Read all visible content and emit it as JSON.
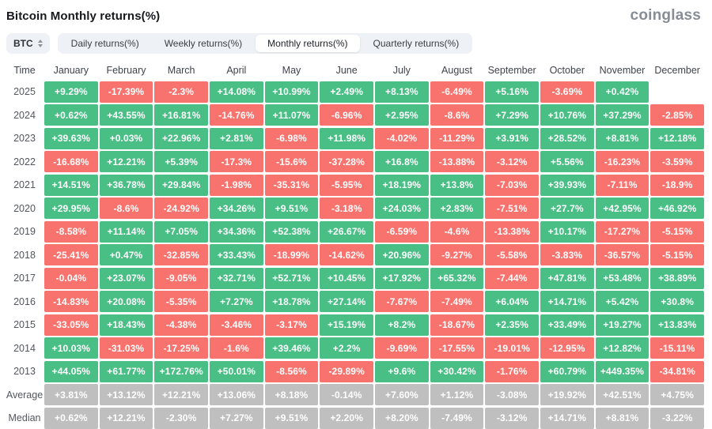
{
  "header": {
    "title": "Bitcoin Monthly returns(%)",
    "logo": "coinglass"
  },
  "controls": {
    "symbol": "BTC",
    "symbol_selector_icon": "up-down-chevron-icon",
    "tabs": [
      {
        "label": "Daily returns(%)",
        "active": false
      },
      {
        "label": "Weekly returns(%)",
        "active": false
      },
      {
        "label": "Monthly returns(%)",
        "active": true
      },
      {
        "label": "Quarterly returns(%)",
        "active": false
      }
    ]
  },
  "colors": {
    "positive": "#49BE85",
    "negative": "#F8736E",
    "neutral": "#BFBFBF"
  },
  "table": {
    "columns": [
      "Time",
      "January",
      "February",
      "March",
      "April",
      "May",
      "June",
      "July",
      "August",
      "September",
      "October",
      "November",
      "December"
    ],
    "rows": [
      {
        "label": "2025",
        "neutral": false,
        "values": [
          "+9.29%",
          "-17.39%",
          "-2.3%",
          "+14.08%",
          "+10.99%",
          "+2.49%",
          "+8.13%",
          "-6.49%",
          "+5.16%",
          "-3.69%",
          "+0.42%",
          ""
        ]
      },
      {
        "label": "2024",
        "neutral": false,
        "values": [
          "+0.62%",
          "+43.55%",
          "+16.81%",
          "-14.76%",
          "+11.07%",
          "-6.96%",
          "+2.95%",
          "-8.6%",
          "+7.29%",
          "+10.76%",
          "+37.29%",
          "-2.85%"
        ]
      },
      {
        "label": "2023",
        "neutral": false,
        "values": [
          "+39.63%",
          "+0.03%",
          "+22.96%",
          "+2.81%",
          "-6.98%",
          "+11.98%",
          "-4.02%",
          "-11.29%",
          "+3.91%",
          "+28.52%",
          "+8.81%",
          "+12.18%"
        ]
      },
      {
        "label": "2022",
        "neutral": false,
        "values": [
          "-16.68%",
          "+12.21%",
          "+5.39%",
          "-17.3%",
          "-15.6%",
          "-37.28%",
          "+16.8%",
          "-13.88%",
          "-3.12%",
          "+5.56%",
          "-16.23%",
          "-3.59%"
        ]
      },
      {
        "label": "2021",
        "neutral": false,
        "values": [
          "+14.51%",
          "+36.78%",
          "+29.84%",
          "-1.98%",
          "-35.31%",
          "-5.95%",
          "+18.19%",
          "+13.8%",
          "-7.03%",
          "+39.93%",
          "-7.11%",
          "-18.9%"
        ]
      },
      {
        "label": "2020",
        "neutral": false,
        "values": [
          "+29.95%",
          "-8.6%",
          "-24.92%",
          "+34.26%",
          "+9.51%",
          "-3.18%",
          "+24.03%",
          "+2.83%",
          "-7.51%",
          "+27.7%",
          "+42.95%",
          "+46.92%"
        ]
      },
      {
        "label": "2019",
        "neutral": false,
        "values": [
          "-8.58%",
          "+11.14%",
          "+7.05%",
          "+34.36%",
          "+52.38%",
          "+26.67%",
          "-6.59%",
          "-4.6%",
          "-13.38%",
          "+10.17%",
          "-17.27%",
          "-5.15%"
        ]
      },
      {
        "label": "2018",
        "neutral": false,
        "values": [
          "-25.41%",
          "+0.47%",
          "-32.85%",
          "+33.43%",
          "-18.99%",
          "-14.62%",
          "+20.96%",
          "-9.27%",
          "-5.58%",
          "-3.83%",
          "-36.57%",
          "-5.15%"
        ]
      },
      {
        "label": "2017",
        "neutral": false,
        "values": [
          "-0.04%",
          "+23.07%",
          "-9.05%",
          "+32.71%",
          "+52.71%",
          "+10.45%",
          "+17.92%",
          "+65.32%",
          "-7.44%",
          "+47.81%",
          "+53.48%",
          "+38.89%"
        ]
      },
      {
        "label": "2016",
        "neutral": false,
        "values": [
          "-14.83%",
          "+20.08%",
          "-5.35%",
          "+7.27%",
          "+18.78%",
          "+27.14%",
          "-7.67%",
          "-7.49%",
          "+6.04%",
          "+14.71%",
          "+5.42%",
          "+30.8%"
        ]
      },
      {
        "label": "2015",
        "neutral": false,
        "values": [
          "-33.05%",
          "+18.43%",
          "-4.38%",
          "-3.46%",
          "-3.17%",
          "+15.19%",
          "+8.2%",
          "-18.67%",
          "+2.35%",
          "+33.49%",
          "+19.27%",
          "+13.83%"
        ]
      },
      {
        "label": "2014",
        "neutral": false,
        "values": [
          "+10.03%",
          "-31.03%",
          "-17.25%",
          "-1.6%",
          "+39.46%",
          "+2.2%",
          "-9.69%",
          "-17.55%",
          "-19.01%",
          "-12.95%",
          "+12.82%",
          "-15.11%"
        ]
      },
      {
        "label": "2013",
        "neutral": false,
        "values": [
          "+44.05%",
          "+61.77%",
          "+172.76%",
          "+50.01%",
          "-8.56%",
          "-29.89%",
          "+9.6%",
          "+30.42%",
          "-1.76%",
          "+60.79%",
          "+449.35%",
          "-34.81%"
        ]
      },
      {
        "label": "Average",
        "neutral": true,
        "values": [
          "+3.81%",
          "+13.12%",
          "+12.21%",
          "+13.06%",
          "+8.18%",
          "-0.14%",
          "+7.60%",
          "+1.12%",
          "-3.08%",
          "+19.92%",
          "+42.51%",
          "+4.75%"
        ]
      },
      {
        "label": "Median",
        "neutral": true,
        "values": [
          "+0.62%",
          "+12.21%",
          "-2.30%",
          "+7.27%",
          "+9.51%",
          "+2.20%",
          "+8.20%",
          "-7.49%",
          "-3.12%",
          "+14.71%",
          "+8.81%",
          "-3.22%"
        ]
      }
    ]
  }
}
